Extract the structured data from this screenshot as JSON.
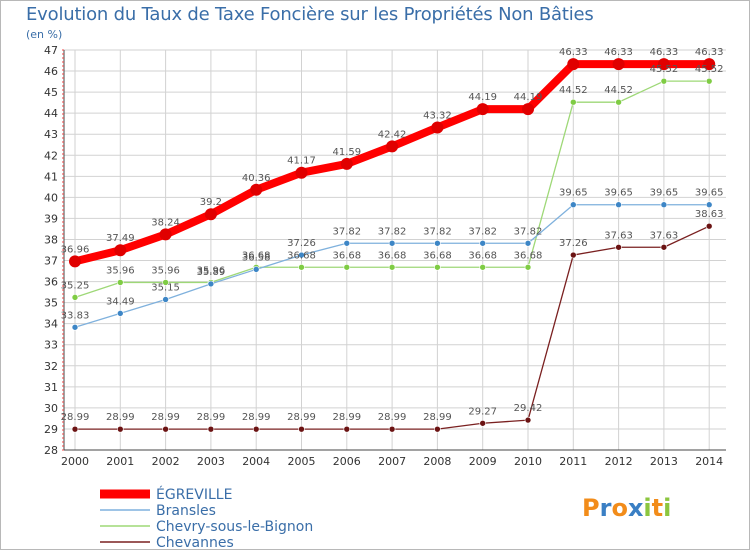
{
  "chart_data": {
    "type": "line",
    "title": "Evolution du Taux de Taxe Foncière sur les Propriétés Non Bâties",
    "ylabel": "(en %)",
    "xlabel": "",
    "ylim": [
      28,
      47
    ],
    "yticks": [
      28,
      29,
      30,
      31,
      32,
      33,
      34,
      35,
      36,
      37,
      38,
      39,
      40,
      41,
      42,
      43,
      44,
      45,
      46,
      47
    ],
    "x": [
      "2000",
      "2001",
      "2002",
      "2003",
      "2004",
      "2005",
      "2006",
      "2007",
      "2008",
      "2009",
      "2010",
      "2011",
      "2012",
      "2013",
      "2014"
    ],
    "series": [
      {
        "name": "ÉGREVILLE",
        "color": "#ff0000",
        "marker": "#e00000",
        "thick": true,
        "values": [
          36.96,
          37.49,
          38.24,
          39.2,
          40.36,
          41.17,
          41.59,
          42.42,
          43.32,
          44.19,
          44.19,
          46.33,
          46.33,
          46.33,
          46.33
        ]
      },
      {
        "name": "Bransles",
        "color": "#7fb1dd",
        "marker": "#3d86c6",
        "thick": false,
        "values": [
          33.83,
          34.49,
          35.15,
          35.89,
          36.58,
          37.26,
          37.82,
          37.82,
          37.82,
          37.82,
          37.82,
          39.65,
          39.65,
          39.65,
          39.65
        ]
      },
      {
        "name": "Chevry-sous-le-Bignon",
        "color": "#9ed877",
        "marker": "#7fcc44",
        "thick": false,
        "values": [
          35.25,
          35.96,
          35.96,
          35.96,
          36.68,
          36.68,
          36.68,
          36.68,
          36.68,
          36.68,
          36.68,
          44.52,
          44.52,
          45.52,
          45.52
        ]
      },
      {
        "name": "Chevannes",
        "color": "#7a2020",
        "marker": "#6b1313",
        "thick": false,
        "values": [
          28.99,
          28.99,
          28.99,
          28.99,
          28.99,
          28.99,
          28.99,
          28.99,
          28.99,
          29.27,
          29.42,
          37.26,
          37.63,
          37.63,
          38.63
        ]
      }
    ],
    "grid": true,
    "legend": "bottom-left"
  },
  "brand": {
    "letters": [
      "P",
      "r",
      "o",
      "x",
      "i",
      "t",
      "i"
    ],
    "colors": [
      "#f28c1a",
      "#3a7fc4",
      "#f28c1a",
      "#3a7fc4",
      "#8cc63f",
      "#f28c1a",
      "#8cc63f"
    ]
  }
}
